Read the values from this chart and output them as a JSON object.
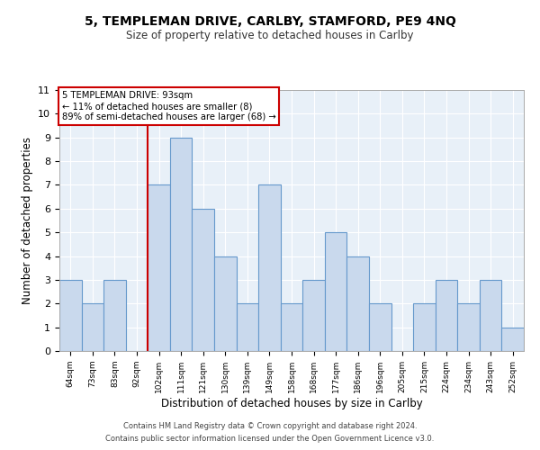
{
  "title": "5, TEMPLEMAN DRIVE, CARLBY, STAMFORD, PE9 4NQ",
  "subtitle": "Size of property relative to detached houses in Carlby",
  "xlabel": "Distribution of detached houses by size in Carlby",
  "ylabel": "Number of detached properties",
  "footnote1": "Contains HM Land Registry data © Crown copyright and database right 2024.",
  "footnote2": "Contains public sector information licensed under the Open Government Licence v3.0.",
  "bin_labels": [
    "64sqm",
    "73sqm",
    "83sqm",
    "92sqm",
    "102sqm",
    "111sqm",
    "121sqm",
    "130sqm",
    "139sqm",
    "149sqm",
    "158sqm",
    "168sqm",
    "177sqm",
    "186sqm",
    "196sqm",
    "205sqm",
    "215sqm",
    "224sqm",
    "234sqm",
    "243sqm",
    "252sqm"
  ],
  "bar_heights": [
    3,
    2,
    3,
    0,
    7,
    9,
    6,
    4,
    2,
    7,
    2,
    3,
    5,
    4,
    2,
    0,
    2,
    3,
    2,
    3,
    1
  ],
  "bar_color": "#c9d9ed",
  "bar_edge_color": "#6699cc",
  "highlight_line_color": "#cc0000",
  "highlight_line_index": 3,
  "ylim": [
    0,
    11
  ],
  "yticks": [
    0,
    1,
    2,
    3,
    4,
    5,
    6,
    7,
    8,
    9,
    10,
    11
  ],
  "annotation_title": "5 TEMPLEMAN DRIVE: 93sqm",
  "annotation_line1": "← 11% of detached houses are smaller (8)",
  "annotation_line2": "89% of semi-detached houses are larger (68) →",
  "bg_color": "#e8f0f8",
  "grid_color": "#ffffff",
  "fig_bg": "#ffffff"
}
